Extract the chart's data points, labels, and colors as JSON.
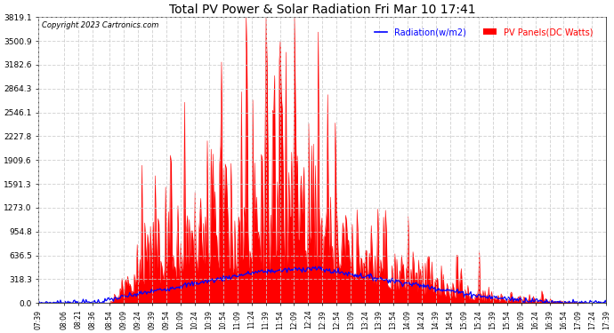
{
  "title": "Total PV Power & Solar Radiation Fri Mar 10 17:41",
  "copyright": "Copyright 2023 Cartronics.com",
  "legend_radiation": "Radiation(w/m2)",
  "legend_pv": "PV Panels(DC Watts)",
  "y_ticks": [
    0.0,
    318.3,
    636.5,
    954.8,
    1273.0,
    1591.3,
    1909.6,
    2227.8,
    2546.1,
    2864.3,
    3182.6,
    3500.9,
    3819.1
  ],
  "y_max": 3819.1,
  "background_color": "#ffffff",
  "plot_bg_color": "#ffffff",
  "grid_color": "#cccccc",
  "pv_color": "#ff0000",
  "radiation_color": "#0000ff",
  "title_color": "#000000",
  "copyright_color": "#000000",
  "tick_labels": [
    "07:39",
    "08:06",
    "08:21",
    "08:36",
    "08:54",
    "09:09",
    "09:24",
    "09:39",
    "09:54",
    "10:09",
    "10:24",
    "10:39",
    "10:54",
    "11:09",
    "11:24",
    "11:39",
    "11:54",
    "12:09",
    "12:24",
    "12:39",
    "12:54",
    "13:09",
    "13:24",
    "13:39",
    "13:54",
    "14:09",
    "14:24",
    "14:39",
    "14:54",
    "15:09",
    "15:24",
    "15:39",
    "15:54",
    "16:09",
    "16:24",
    "16:39",
    "16:54",
    "17:09",
    "17:24",
    "17:39"
  ]
}
